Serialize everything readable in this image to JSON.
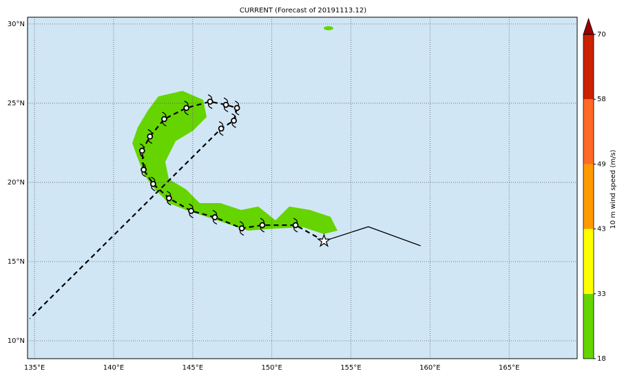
{
  "map": {
    "title": "CURRENT (Forecast of 20191113.12)",
    "xlim": [
      134.56,
      169.3
    ],
    "ylim": [
      8.87,
      30.43
    ],
    "xticks": [
      {
        "value": 135,
        "label": "135°E"
      },
      {
        "value": 140,
        "label": "140°E"
      },
      {
        "value": 145,
        "label": "145°E"
      },
      {
        "value": 150,
        "label": "150°E"
      },
      {
        "value": 155,
        "label": "155°E"
      },
      {
        "value": 160,
        "label": "160°E"
      },
      {
        "value": 165,
        "label": "165°E"
      }
    ],
    "yticks": [
      {
        "value": 10,
        "label": "10°N"
      },
      {
        "value": 15,
        "label": "15°N"
      },
      {
        "value": 20,
        "label": "20°N"
      },
      {
        "value": 25,
        "label": "25°N"
      },
      {
        "value": 30,
        "label": "30°N"
      }
    ],
    "grid": true,
    "forecast_track": {
      "lon": [
        153.3,
        151.5,
        149.4,
        148.1,
        146.4,
        144.9,
        143.5,
        142.5,
        141.9,
        141.8,
        142.3,
        143.2,
        144.6,
        146.1,
        147.1,
        147.8,
        147.6,
        146.8,
        134.7
      ],
      "lat": [
        16.3,
        17.3,
        17.3,
        17.1,
        17.8,
        18.2,
        19.0,
        19.9,
        20.8,
        22.0,
        22.9,
        24.0,
        24.7,
        25.1,
        24.9,
        24.7,
        23.9,
        23.4,
        11.4
      ]
    },
    "past_track": {
      "lon": [
        153.3,
        156.1,
        159.4
      ],
      "lat": [
        16.3,
        17.2,
        16.0
      ]
    },
    "colorbar": {
      "label": "10 m wind speed (m/s)",
      "ticks": [
        18,
        33,
        43,
        49,
        58,
        70
      ],
      "colors": [
        "#66d400",
        "#ffff00",
        "#ff9900",
        "#ff6a26",
        "#cc2200"
      ],
      "extend_color": "#990000"
    }
  }
}
